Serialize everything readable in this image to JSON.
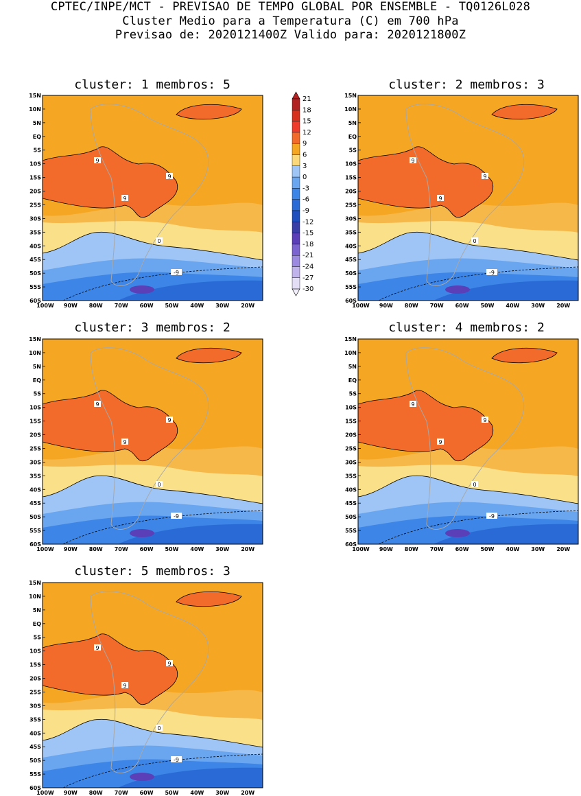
{
  "header": {
    "line1": "CPTEC/INPE/MCT - PREVISAO DE TEMPO GLOBAL POR ENSEMBLE - TQ0126L028",
    "line2": "Cluster Medio para a Temperatura (C) em 700 hPa",
    "line3": "Previsao de: 2020121400Z   Valido para: 2020121800Z"
  },
  "axes": {
    "lat_labels": [
      "15N",
      "10N",
      "5N",
      "EQ",
      "5S",
      "10S",
      "15S",
      "20S",
      "25S",
      "30S",
      "35S",
      "40S",
      "45S",
      "50S",
      "55S",
      "60S"
    ],
    "lon_labels": [
      "100W",
      "90W",
      "80W",
      "70W",
      "60W",
      "50W",
      "40W",
      "30W",
      "20W"
    ]
  },
  "colorbar": {
    "levels": [
      "21",
      "18",
      "15",
      "12",
      "9",
      "6",
      "3",
      "0",
      "-3",
      "-6",
      "-9",
      "-12",
      "-15",
      "-18",
      "-21",
      "-24",
      "-27",
      "-30"
    ],
    "colors": [
      "#b22222",
      "#d7301f",
      "#ef3b2c",
      "#f26b2a",
      "#f5a623",
      "#fbd97a",
      "#9ec5f5",
      "#6aa5ef",
      "#3d85e6",
      "#2a6ad6",
      "#1f4fbf",
      "#3a3fa8",
      "#5a3fb8",
      "#7b63d0",
      "#9c8ae0",
      "#c0b3ec",
      "#e3ddf6"
    ]
  },
  "contour_labels": {
    "nine": "9",
    "zero": "0",
    "minus_nine": "-9"
  },
  "panels": [
    {
      "title": "cluster: 1   membros: 5"
    },
    {
      "title": "cluster: 2   membros: 3"
    },
    {
      "title": "cluster: 3   membros: 2"
    },
    {
      "title": "cluster: 4   membros: 2"
    },
    {
      "title": "cluster: 5   membros: 3"
    }
  ]
}
